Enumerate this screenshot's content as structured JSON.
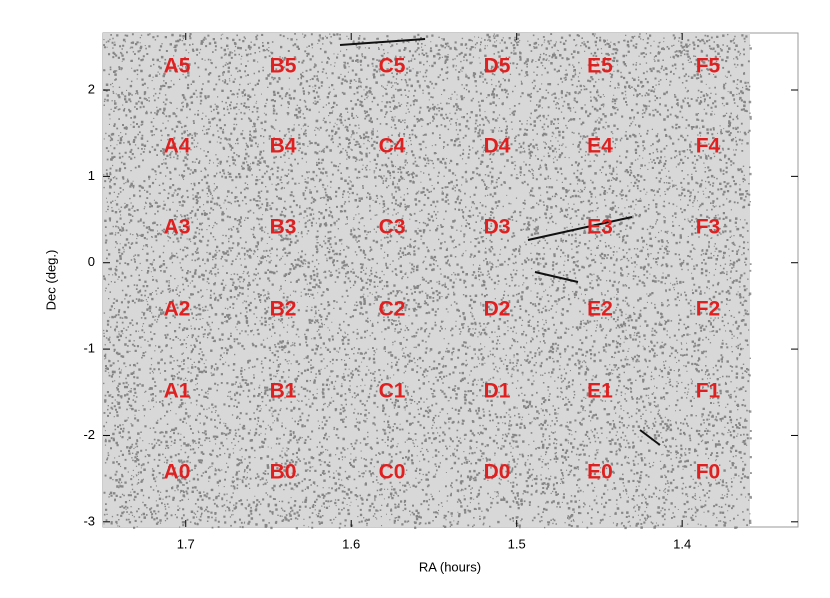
{
  "chart_data": {
    "type": "field-map",
    "xlabel": "RA (hours)",
    "ylabel": "Dec (deg.)",
    "xlim": [
      1.75,
      1.33
    ],
    "xticks": [
      1.7,
      1.6,
      1.5,
      1.4
    ],
    "ylim": [
      -3.06,
      2.66
    ],
    "yticks": [
      -3,
      -2,
      -1,
      0,
      1,
      2
    ],
    "fields": [
      [
        "A5",
        "B5",
        "C5",
        "D5",
        "E5",
        "F5"
      ],
      [
        "A4",
        "B4",
        "C4",
        "D4",
        "E4",
        "F4"
      ],
      [
        "A3",
        "B3",
        "C3",
        "D3",
        "E3",
        "F3"
      ],
      [
        "A2",
        "B2",
        "C2",
        "D2",
        "E2",
        "F2"
      ],
      [
        "A1",
        "B1",
        "C1",
        "D1",
        "E1",
        "F1"
      ],
      [
        "A0",
        "B0",
        "C0",
        "D0",
        "E0",
        "F0"
      ]
    ],
    "color": "#e02020"
  }
}
